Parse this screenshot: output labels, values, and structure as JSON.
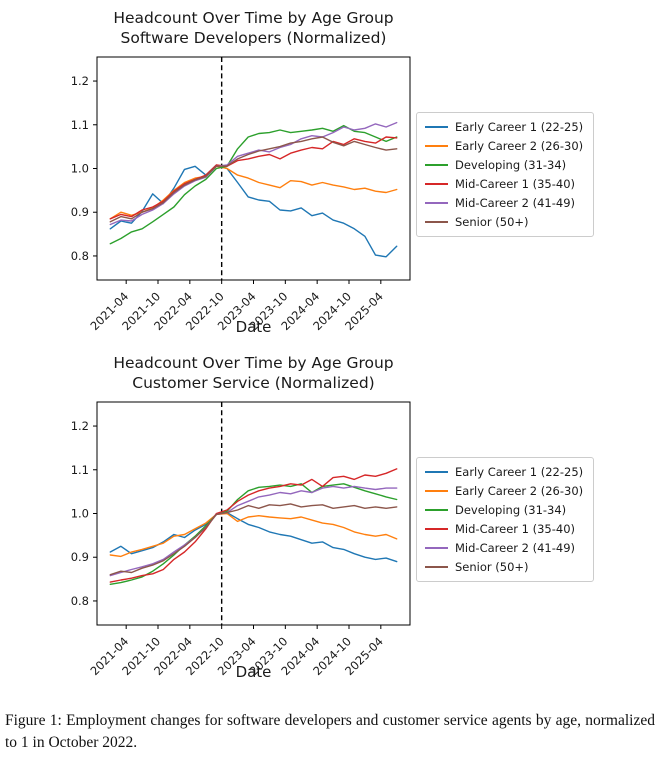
{
  "caption": "Figure 1: Employment changes for software developers and customer service agents by age, normalized to 1 in October 2022.",
  "chart_data": [
    {
      "type": "line",
      "title_line1": "Headcount Over Time by Age Group",
      "title_line2": "Software Developers (Normalized)",
      "xlabel": "Date",
      "ylabel": "",
      "legend_position": "center right, outside axes",
      "grid": false,
      "ylim": [
        0.745,
        1.255
      ],
      "xlim_months": [
        -2.5,
        56.5
      ],
      "yticks": [
        "0.8",
        "0.9",
        "1.0",
        "1.1",
        "1.2"
      ],
      "ytick_values": [
        0.8,
        0.9,
        1.0,
        1.1,
        1.2
      ],
      "xtick_labels": [
        "2021-04",
        "2021-10",
        "2022-04",
        "2022-10",
        "2023-04",
        "2023-10",
        "2024-04",
        "2024-10",
        "2025-04"
      ],
      "xtick_months": [
        3,
        9,
        15,
        21,
        27,
        33,
        39,
        45,
        51
      ],
      "vline_month": 21,
      "vline_label": "2022-10 normalization point (dashed)",
      "x_months": [
        0,
        2,
        4,
        6,
        8,
        10,
        12,
        14,
        16,
        18,
        20,
        22,
        24,
        26,
        28,
        30,
        32,
        34,
        36,
        38,
        40,
        42,
        44,
        46,
        48,
        50,
        52,
        54
      ],
      "x_start_date": "2021-01",
      "x_end_date": "2025-07",
      "series": [
        {
          "name": "Early Career 1 (22-25)",
          "color": "#1f77b4",
          "values": [
            0.862,
            0.88,
            0.875,
            0.902,
            0.942,
            0.92,
            0.955,
            0.998,
            1.005,
            0.985,
            1.008,
            1.0,
            0.968,
            0.935,
            0.928,
            0.925,
            0.905,
            0.903,
            0.91,
            0.892,
            0.898,
            0.882,
            0.875,
            0.862,
            0.845,
            0.802,
            0.798,
            0.822
          ]
        },
        {
          "name": "Early Career 2 (26-30)",
          "color": "#ff7f0e",
          "values": [
            0.885,
            0.9,
            0.893,
            0.9,
            0.91,
            0.928,
            0.95,
            0.968,
            0.978,
            0.982,
            1.005,
            1.0,
            0.985,
            0.978,
            0.968,
            0.962,
            0.956,
            0.972,
            0.97,
            0.962,
            0.968,
            0.962,
            0.958,
            0.952,
            0.955,
            0.948,
            0.945,
            0.952
          ]
        },
        {
          "name": "Developing (31-34)",
          "color": "#2ca02c",
          "values": [
            0.828,
            0.84,
            0.855,
            0.862,
            0.878,
            0.895,
            0.912,
            0.94,
            0.96,
            0.975,
            1.0,
            1.005,
            1.045,
            1.072,
            1.08,
            1.082,
            1.088,
            1.082,
            1.085,
            1.088,
            1.092,
            1.085,
            1.098,
            1.085,
            1.082,
            1.072,
            1.062,
            1.072
          ]
        },
        {
          "name": "Mid-Career 1 (35-40)",
          "color": "#d62728",
          "values": [
            0.885,
            0.895,
            0.89,
            0.905,
            0.912,
            0.925,
            0.948,
            0.965,
            0.975,
            0.985,
            1.008,
            1.005,
            1.018,
            1.022,
            1.028,
            1.032,
            1.022,
            1.035,
            1.042,
            1.048,
            1.045,
            1.062,
            1.055,
            1.068,
            1.062,
            1.058,
            1.072,
            1.07
          ]
        },
        {
          "name": "Mid-Career 2 (41-49)",
          "color": "#9467bd",
          "values": [
            0.872,
            0.882,
            0.88,
            0.895,
            0.905,
            0.92,
            0.942,
            0.96,
            0.972,
            0.98,
            1.005,
            1.008,
            1.028,
            1.035,
            1.042,
            1.038,
            1.048,
            1.055,
            1.068,
            1.075,
            1.072,
            1.082,
            1.095,
            1.088,
            1.092,
            1.102,
            1.095,
            1.105
          ]
        },
        {
          "name": "Senior (50+)",
          "color": "#8c564b",
          "values": [
            0.878,
            0.89,
            0.885,
            0.9,
            0.908,
            0.922,
            0.945,
            0.962,
            0.974,
            0.982,
            1.005,
            1.006,
            1.022,
            1.032,
            1.04,
            1.045,
            1.05,
            1.058,
            1.062,
            1.068,
            1.072,
            1.06,
            1.052,
            1.062,
            1.055,
            1.048,
            1.042,
            1.045
          ]
        }
      ]
    },
    {
      "type": "line",
      "title_line1": "Headcount Over Time by Age Group",
      "title_line2": "Customer Service (Normalized)",
      "xlabel": "Date",
      "ylabel": "",
      "legend_position": "center right, outside axes",
      "grid": false,
      "ylim": [
        0.745,
        1.255
      ],
      "xlim_months": [
        -2.5,
        56.5
      ],
      "yticks": [
        "0.8",
        "0.9",
        "1.0",
        "1.1",
        "1.2"
      ],
      "ytick_values": [
        0.8,
        0.9,
        1.0,
        1.1,
        1.2
      ],
      "xtick_labels": [
        "2021-04",
        "2021-10",
        "2022-04",
        "2022-10",
        "2023-04",
        "2023-10",
        "2024-04",
        "2024-10",
        "2025-04"
      ],
      "xtick_months": [
        3,
        9,
        15,
        21,
        27,
        33,
        39,
        45,
        51
      ],
      "vline_month": 21,
      "vline_label": "2022-10 normalization point (dashed)",
      "x_months": [
        0,
        2,
        4,
        6,
        8,
        10,
        12,
        14,
        16,
        18,
        20,
        22,
        24,
        26,
        28,
        30,
        32,
        34,
        36,
        38,
        40,
        42,
        44,
        46,
        48,
        50,
        52,
        54
      ],
      "x_start_date": "2021-01",
      "x_end_date": "2025-07",
      "series": [
        {
          "name": "Early Career 1 (22-25)",
          "color": "#1f77b4",
          "values": [
            0.912,
            0.925,
            0.908,
            0.915,
            0.922,
            0.935,
            0.952,
            0.945,
            0.962,
            0.975,
            0.998,
            1.002,
            0.988,
            0.975,
            0.968,
            0.958,
            0.952,
            0.948,
            0.94,
            0.932,
            0.935,
            0.922,
            0.918,
            0.908,
            0.9,
            0.895,
            0.898,
            0.89
          ]
        },
        {
          "name": "Early Career 2 (26-30)",
          "color": "#ff7f0e",
          "values": [
            0.905,
            0.902,
            0.912,
            0.918,
            0.925,
            0.932,
            0.948,
            0.952,
            0.965,
            0.978,
            0.998,
            1.0,
            0.982,
            0.992,
            0.995,
            0.992,
            0.99,
            0.988,
            0.992,
            0.985,
            0.978,
            0.975,
            0.968,
            0.958,
            0.952,
            0.948,
            0.952,
            0.942
          ]
        },
        {
          "name": "Developing (31-34)",
          "color": "#2ca02c",
          "values": [
            0.838,
            0.842,
            0.848,
            0.855,
            0.868,
            0.885,
            0.905,
            0.928,
            0.948,
            0.972,
            0.998,
            1.005,
            1.032,
            1.052,
            1.06,
            1.062,
            1.065,
            1.062,
            1.068,
            1.048,
            1.062,
            1.065,
            1.068,
            1.06,
            1.052,
            1.045,
            1.038,
            1.032
          ]
        },
        {
          "name": "Mid-Career 1 (35-40)",
          "color": "#d62728",
          "values": [
            0.843,
            0.848,
            0.852,
            0.858,
            0.862,
            0.872,
            0.895,
            0.912,
            0.935,
            0.965,
            1.0,
            1.008,
            1.028,
            1.042,
            1.052,
            1.058,
            1.062,
            1.068,
            1.065,
            1.078,
            1.062,
            1.082,
            1.085,
            1.078,
            1.088,
            1.085,
            1.092,
            1.102
          ]
        },
        {
          "name": "Mid-Career 2 (41-49)",
          "color": "#9467bd",
          "values": [
            0.858,
            0.865,
            0.872,
            0.878,
            0.885,
            0.895,
            0.912,
            0.928,
            0.945,
            0.968,
            0.998,
            1.002,
            1.018,
            1.028,
            1.038,
            1.042,
            1.048,
            1.045,
            1.052,
            1.048,
            1.058,
            1.062,
            1.058,
            1.062,
            1.058,
            1.055,
            1.058,
            1.058
          ]
        },
        {
          "name": "Senior (50+)",
          "color": "#8c564b",
          "values": [
            0.86,
            0.868,
            0.865,
            0.875,
            0.882,
            0.892,
            0.908,
            0.925,
            0.945,
            0.968,
            0.998,
            1.002,
            1.008,
            1.018,
            1.012,
            1.02,
            1.018,
            1.022,
            1.015,
            1.018,
            1.02,
            1.012,
            1.015,
            1.018,
            1.012,
            1.015,
            1.012,
            1.015
          ]
        }
      ]
    }
  ]
}
